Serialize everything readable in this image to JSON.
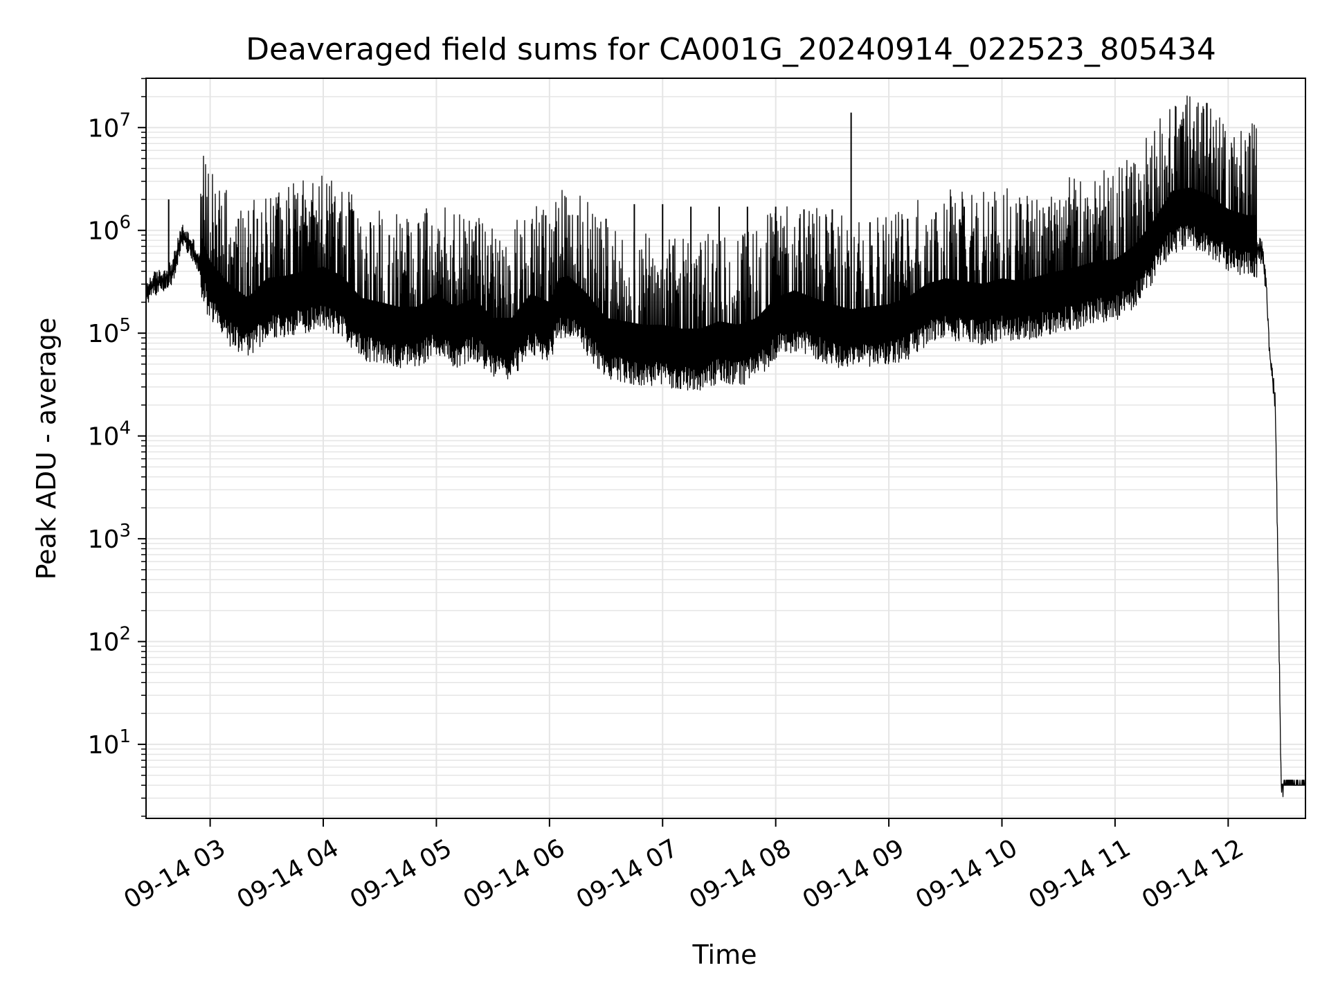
{
  "chart_data": {
    "type": "line",
    "title": "Deaveraged field sums for CA001G_20240914_022523_805434",
    "xlabel": "Time",
    "ylabel": "Peak ADU - average",
    "yscale": "log",
    "grid": true,
    "grid_minor": true,
    "line_color": "#000000",
    "grid_color": "#e5e5e5",
    "xlim": [
      "2024-09-14 02:26",
      "2024-09-14 12:41"
    ],
    "ylim_exp": [
      0.28,
      7.48
    ],
    "x_ticks": [
      {
        "time": "2024-09-14 03:00",
        "label": "09-14 03"
      },
      {
        "time": "2024-09-14 04:00",
        "label": "09-14 04"
      },
      {
        "time": "2024-09-14 05:00",
        "label": "09-14 05"
      },
      {
        "time": "2024-09-14 06:00",
        "label": "09-14 06"
      },
      {
        "time": "2024-09-14 07:00",
        "label": "09-14 07"
      },
      {
        "time": "2024-09-14 08:00",
        "label": "09-14 08"
      },
      {
        "time": "2024-09-14 09:00",
        "label": "09-14 09"
      },
      {
        "time": "2024-09-14 10:00",
        "label": "09-14 10"
      },
      {
        "time": "2024-09-14 11:00",
        "label": "09-14 11"
      },
      {
        "time": "2024-09-14 12:00",
        "label": "09-14 12"
      }
    ],
    "y_ticks": [
      {
        "value": 10,
        "base": "10",
        "exp": "1"
      },
      {
        "value": 100,
        "base": "10",
        "exp": "2"
      },
      {
        "value": 1000,
        "base": "10",
        "exp": "3"
      },
      {
        "value": 10000,
        "base": "10",
        "exp": "4"
      },
      {
        "value": 100000,
        "base": "10",
        "exp": "5"
      },
      {
        "value": 1000000,
        "base": "10",
        "exp": "6"
      },
      {
        "value": 10000000,
        "base": "10",
        "exp": "7"
      }
    ],
    "series": [
      {
        "baseline": {
          "x": [
            "2024-09-14 02:26",
            "2024-09-14 02:30",
            "2024-09-14 02:35",
            "2024-09-14 02:40",
            "2024-09-14 02:45",
            "2024-09-14 02:50",
            "2024-09-14 02:55",
            "2024-09-14 03:00",
            "2024-09-14 03:10",
            "2024-09-14 03:20",
            "2024-09-14 03:30",
            "2024-09-14 03:40",
            "2024-09-14 03:50",
            "2024-09-14 04:00",
            "2024-09-14 04:10",
            "2024-09-14 04:20",
            "2024-09-14 04:30",
            "2024-09-14 04:40",
            "2024-09-14 04:50",
            "2024-09-14 05:00",
            "2024-09-14 05:10",
            "2024-09-14 05:20",
            "2024-09-14 05:30",
            "2024-09-14 05:40",
            "2024-09-14 05:50",
            "2024-09-14 06:00",
            "2024-09-14 06:05",
            "2024-09-14 06:10",
            "2024-09-14 06:20",
            "2024-09-14 06:30",
            "2024-09-14 06:40",
            "2024-09-14 06:50",
            "2024-09-14 07:00",
            "2024-09-14 07:10",
            "2024-09-14 07:20",
            "2024-09-14 07:30",
            "2024-09-14 07:40",
            "2024-09-14 07:50",
            "2024-09-14 08:00",
            "2024-09-14 08:10",
            "2024-09-14 08:20",
            "2024-09-14 08:30",
            "2024-09-14 08:40",
            "2024-09-14 08:50",
            "2024-09-14 09:00",
            "2024-09-14 09:10",
            "2024-09-14 09:20",
            "2024-09-14 09:30",
            "2024-09-14 09:40",
            "2024-09-14 09:50",
            "2024-09-14 10:00",
            "2024-09-14 10:10",
            "2024-09-14 10:20",
            "2024-09-14 10:30",
            "2024-09-14 10:40",
            "2024-09-14 10:50",
            "2024-09-14 11:00",
            "2024-09-14 11:10",
            "2024-09-14 11:20",
            "2024-09-14 11:30",
            "2024-09-14 11:40",
            "2024-09-14 11:50",
            "2024-09-14 12:00",
            "2024-09-14 12:10",
            "2024-09-14 12:15",
            "2024-09-14 12:18",
            "2024-09-14 12:20",
            "2024-09-14 12:22",
            "2024-09-14 12:25",
            "2024-09-14 12:28",
            "2024-09-14 12:29",
            "2024-09-14 12:41"
          ],
          "y": [
            250000,
            300000,
            330000,
            400000,
            900000,
            700000,
            450000,
            250000,
            150000,
            110000,
            170000,
            180000,
            200000,
            220000,
            180000,
            110000,
            100000,
            90000,
            90000,
            120000,
            90000,
            110000,
            70000,
            70000,
            120000,
            100000,
            170000,
            180000,
            120000,
            70000,
            65000,
            60000,
            60000,
            55000,
            55000,
            65000,
            60000,
            70000,
            110000,
            130000,
            110000,
            95000,
            85000,
            90000,
            95000,
            110000,
            150000,
            170000,
            160000,
            150000,
            170000,
            160000,
            180000,
            200000,
            220000,
            250000,
            260000,
            350000,
            600000,
            1200000,
            1300000,
            1100000,
            800000,
            700000,
            700000,
            600000,
            300000,
            60000,
            20000,
            4,
            4,
            4
          ]
        },
        "spikes": {
          "x": [
            "2024-09-14 02:38",
            "2024-09-14 03:05",
            "2024-09-14 03:15",
            "2024-09-14 03:25",
            "2024-09-14 03:35",
            "2024-09-14 03:45",
            "2024-09-14 03:55",
            "2024-09-14 04:05",
            "2024-09-14 04:15",
            "2024-09-14 04:25",
            "2024-09-14 04:35",
            "2024-09-14 04:45",
            "2024-09-14 05:30",
            "2024-09-14 05:58",
            "2024-09-14 06:15",
            "2024-09-14 06:30",
            "2024-09-14 06:45",
            "2024-09-14 07:00",
            "2024-09-14 07:15",
            "2024-09-14 07:30",
            "2024-09-14 07:45",
            "2024-09-14 08:00",
            "2024-09-14 08:15",
            "2024-09-14 08:30",
            "2024-09-14 08:40",
            "2024-09-14 08:50",
            "2024-09-14 09:10",
            "2024-09-14 09:25",
            "2024-09-14 09:40",
            "2024-09-14 09:55",
            "2024-09-14 10:10",
            "2024-09-14 10:25",
            "2024-09-14 10:40",
            "2024-09-14 10:55",
            "2024-09-14 11:10",
            "2024-09-14 11:25",
            "2024-09-14 11:38",
            "2024-09-14 11:50"
          ],
          "y": [
            2000000,
            1300000,
            1300000,
            1300000,
            1300000,
            1600000,
            1400000,
            1500000,
            1600000,
            1200000,
            900000,
            900000,
            500000,
            1400000,
            1400000,
            1300000,
            1800000,
            1800000,
            1700000,
            1700000,
            1700000,
            1700000,
            1600000,
            1600000,
            14000000,
            1200000,
            1300000,
            1500000,
            1700000,
            1700000,
            1800000,
            1700000,
            1700000,
            1700000,
            1800000,
            1700000,
            3000000,
            2300000
          ]
        }
      }
    ]
  }
}
